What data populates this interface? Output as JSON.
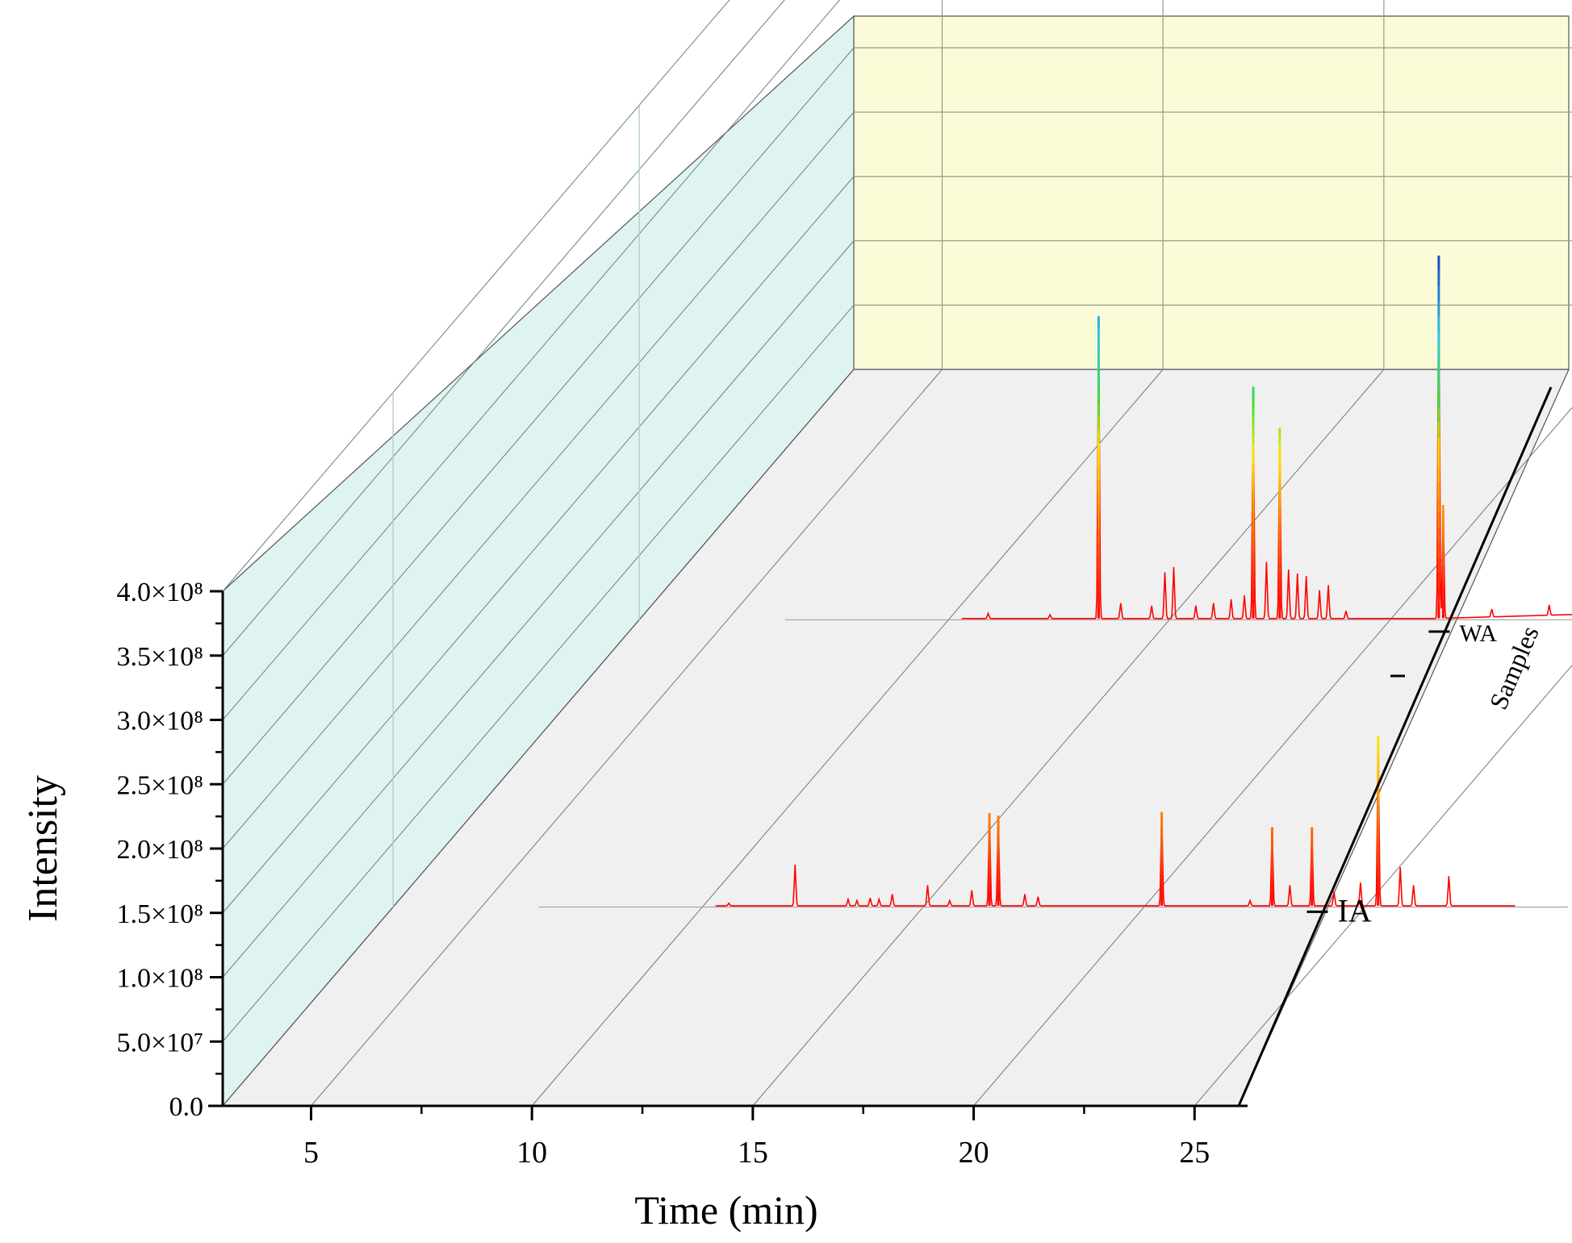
{
  "chart_data": {
    "type": "line",
    "subtype": "3d-waterfall",
    "title": "",
    "xlabel": "Time (min)",
    "ylabel": "Intensity",
    "zlabel": "Samples",
    "x_ticks": [
      "5",
      "10",
      "15",
      "20",
      "25"
    ],
    "y_ticks": [
      "0.0",
      "5.0×10⁷",
      "1.0×10⁸",
      "1.5×10⁸",
      "2.0×10⁸",
      "2.5×10⁸",
      "3.0×10⁸",
      "3.5×10⁸",
      "4.0×10⁸"
    ],
    "x_range": [
      3,
      26
    ],
    "y_range": [
      0,
      400000000
    ],
    "grid": true,
    "colors": {
      "back_wall": "#fbfbd8",
      "side_wall": "#dff4f2",
      "floor": "#f0f0f0",
      "line_low": "#ff0000",
      "line_high": "#1010c0"
    },
    "series": [
      {
        "name": "IA",
        "baseline": 1000000,
        "peaks": [
          {
            "t": 10.6,
            "h": 2000000
          },
          {
            "t": 12.1,
            "h": 32000000
          },
          {
            "t": 13.3,
            "h": 5000000
          },
          {
            "t": 13.5,
            "h": 4000000
          },
          {
            "t": 13.8,
            "h": 6000000
          },
          {
            "t": 14.0,
            "h": 5000000
          },
          {
            "t": 14.3,
            "h": 9000000
          },
          {
            "t": 15.1,
            "h": 16000000
          },
          {
            "t": 15.6,
            "h": 4000000
          },
          {
            "t": 16.1,
            "h": 12000000
          },
          {
            "t": 16.5,
            "h": 72000000
          },
          {
            "t": 16.7,
            "h": 70000000
          },
          {
            "t": 17.3,
            "h": 9000000
          },
          {
            "t": 17.6,
            "h": 7000000
          },
          {
            "t": 20.4,
            "h": 73000000
          },
          {
            "t": 22.4,
            "h": 4000000
          },
          {
            "t": 22.9,
            "h": 61000000
          },
          {
            "t": 23.3,
            "h": 16000000
          },
          {
            "t": 23.8,
            "h": 61000000
          },
          {
            "t": 24.3,
            "h": 11000000
          },
          {
            "t": 24.9,
            "h": 18000000
          },
          {
            "t": 25.3,
            "h": 132000000
          },
          {
            "t": 25.8,
            "h": 30000000
          },
          {
            "t": 26.1,
            "h": 16000000
          },
          {
            "t": 26.9,
            "h": 23000000
          }
        ]
      },
      {
        "name": "WA",
        "baseline": 1000000,
        "peaks": [
          {
            "t": 10.9,
            "h": 4000000
          },
          {
            "t": 12.3,
            "h": 3000000
          },
          {
            "t": 13.4,
            "h": 235000000
          },
          {
            "t": 13.9,
            "h": 12000000
          },
          {
            "t": 14.6,
            "h": 10000000
          },
          {
            "t": 14.9,
            "h": 36000000
          },
          {
            "t": 15.1,
            "h": 40000000
          },
          {
            "t": 15.6,
            "h": 10000000
          },
          {
            "t": 16.0,
            "h": 12000000
          },
          {
            "t": 16.4,
            "h": 15000000
          },
          {
            "t": 16.7,
            "h": 18000000
          },
          {
            "t": 16.9,
            "h": 180000000
          },
          {
            "t": 17.2,
            "h": 44000000
          },
          {
            "t": 17.5,
            "h": 148000000
          },
          {
            "t": 17.7,
            "h": 38000000
          },
          {
            "t": 17.9,
            "h": 35000000
          },
          {
            "t": 18.1,
            "h": 33000000
          },
          {
            "t": 18.4,
            "h": 22000000
          },
          {
            "t": 18.6,
            "h": 26000000
          },
          {
            "t": 19.0,
            "h": 6000000
          },
          {
            "t": 21.1,
            "h": 282000000
          },
          {
            "t": 21.2,
            "h": 88000000
          },
          {
            "t": 22.3,
            "h": 6000000
          },
          {
            "t": 23.6,
            "h": 8000000
          },
          {
            "t": 25.1,
            "h": 18000000
          }
        ]
      }
    ]
  }
}
